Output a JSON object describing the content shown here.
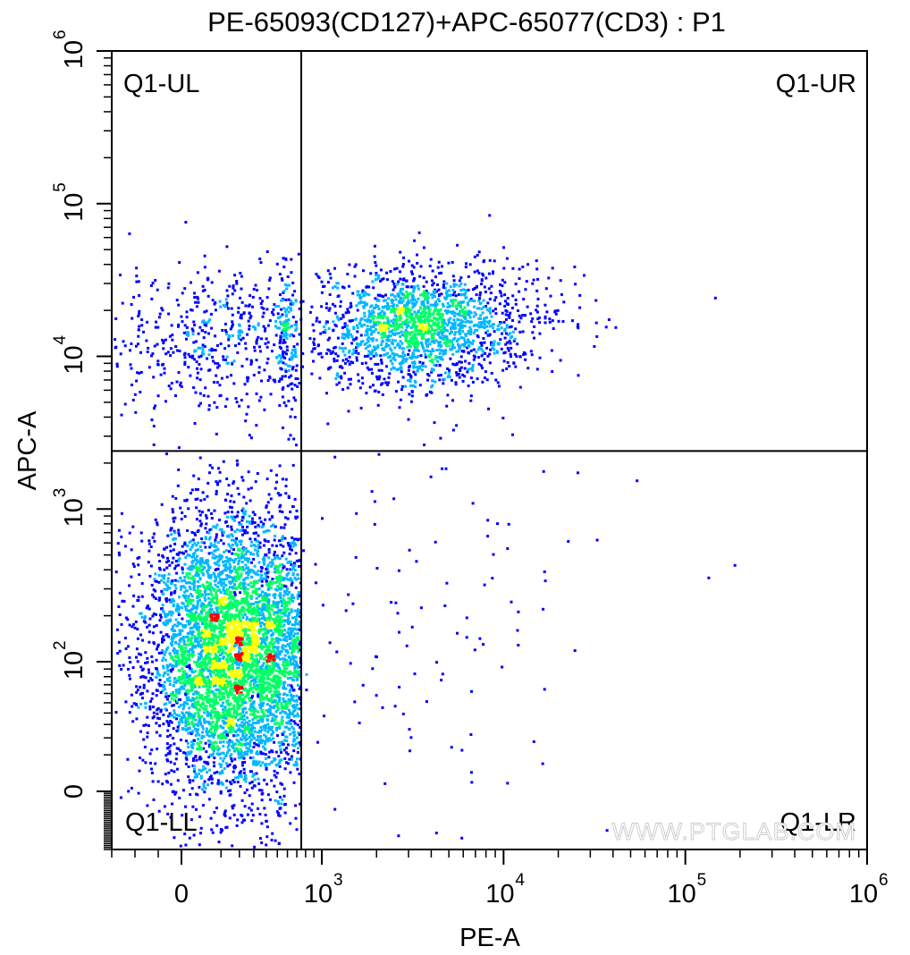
{
  "chart_data": {
    "type": "scatter",
    "title": "PE-65093(CD127)+APC-65077(CD3) : P1",
    "xlabel": "PE-A",
    "ylabel": "APC-A",
    "x_scale": "biexponential",
    "y_scale": "biexponential",
    "xlim": [
      -300,
      1000000
    ],
    "ylim": [
      -300,
      1000000
    ],
    "x_ticks": [
      {
        "value": 0,
        "base": "0",
        "exp": ""
      },
      {
        "value": 1000,
        "base": "10",
        "exp": "3"
      },
      {
        "value": 10000,
        "base": "10",
        "exp": "4"
      },
      {
        "value": 100000,
        "base": "10",
        "exp": "5"
      },
      {
        "value": 1000000,
        "base": "10",
        "exp": "6"
      }
    ],
    "y_ticks": [
      {
        "value": 0,
        "base": "0",
        "exp": ""
      },
      {
        "value": 100,
        "base": "10",
        "exp": "2"
      },
      {
        "value": 1000,
        "base": "10",
        "exp": "3"
      },
      {
        "value": 10000,
        "base": "10",
        "exp": "4"
      },
      {
        "value": 100000,
        "base": "10",
        "exp": "5"
      },
      {
        "value": 1000000,
        "base": "10",
        "exp": "6"
      }
    ],
    "quadrant_gate": {
      "x": 750,
      "y": 2400
    },
    "quadrants": [
      {
        "label": "Q1-UL",
        "position": "top-left"
      },
      {
        "label": "Q1-UR",
        "position": "top-right"
      },
      {
        "label": "Q1-LL",
        "position": "bottom-left"
      },
      {
        "label": "Q1-LR",
        "position": "bottom-right"
      }
    ],
    "populations": [
      {
        "quadrant": "Q1-LL",
        "x_center": 150,
        "y_center": 150,
        "density": "high"
      },
      {
        "quadrant": "Q1-UR",
        "x_center": 3500,
        "y_center": 16000,
        "density": "medium"
      },
      {
        "quadrant": "Q1-UL",
        "x_center": 200,
        "y_center": 15000,
        "density": "low"
      },
      {
        "quadrant": "Q1-LR",
        "x_center": 3000,
        "y_center": 300,
        "density": "very low"
      }
    ],
    "grid": false,
    "colormap": [
      "#0000ff",
      "#00b7ff",
      "#00ff66",
      "#ffff00",
      "#ff0000"
    ]
  },
  "watermark": "WWW.PTGLAB.COM"
}
